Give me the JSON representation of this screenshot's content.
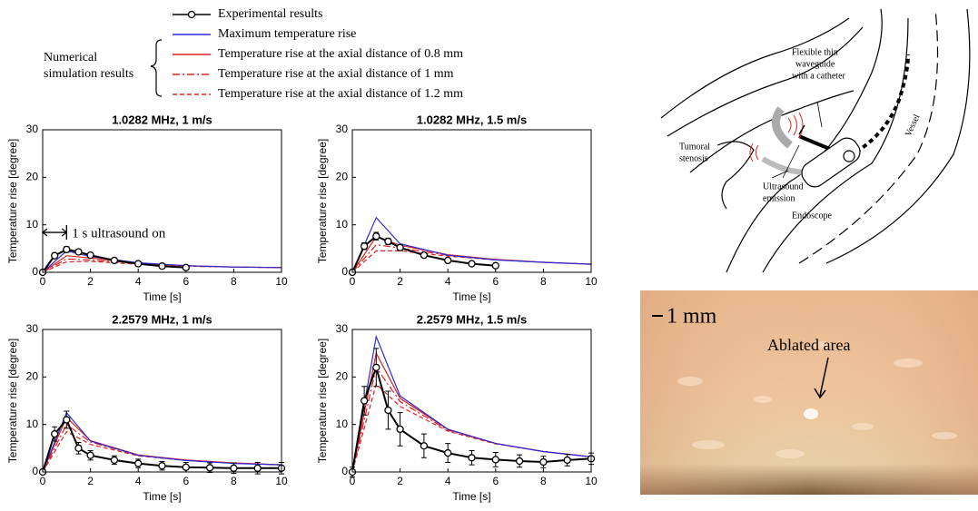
{
  "chart_data": [
    {
      "type": "line",
      "title": "1.0282 MHz, 1 m/s",
      "x_label": "Time [s]",
      "y_label": "Temperature rise [degree]",
      "annotation": "1 s ultrasound on",
      "xlim": [
        0,
        10
      ],
      "ylim": [
        0,
        30
      ],
      "xticks": [
        0,
        2,
        4,
        6,
        8,
        10
      ],
      "yticks": [
        0,
        10,
        20,
        30
      ],
      "series": [
        {
          "name": "Experimental results",
          "color": "#000000",
          "dash": "solid",
          "marker": "circle",
          "x": [
            0,
            0.5,
            1,
            1.5,
            2,
            3,
            4,
            5,
            6
          ],
          "values": [
            0,
            3.5,
            4.8,
            4.3,
            3.6,
            2.5,
            1.8,
            1.3,
            1.0
          ],
          "errors": [
            0.3,
            0.5,
            0.6,
            0.5,
            0.4,
            0.4,
            0.3,
            0.3,
            0.3
          ]
        },
        {
          "name": "Maximum temperature rise",
          "color": "#2b2bd9",
          "dash": "solid",
          "x": [
            0,
            1,
            2,
            4,
            6,
            8,
            10
          ],
          "values": [
            0,
            4.5,
            3.3,
            2.0,
            1.4,
            1.1,
            1.0
          ]
        },
        {
          "name": "Temperature rise at the axial distance of 0.8 mm",
          "color": "#e02020",
          "dash": "solid",
          "x": [
            0,
            1,
            2,
            4,
            6,
            8,
            10
          ],
          "values": [
            0,
            3.5,
            3.0,
            1.9,
            1.4,
            1.1,
            1.0
          ]
        },
        {
          "name": "Temperature rise at the axial distance of 1 mm",
          "color": "#e02020",
          "dash": "dashdot",
          "x": [
            0,
            1,
            2,
            4,
            6,
            8,
            10
          ],
          "values": [
            0,
            2.8,
            2.6,
            1.8,
            1.3,
            1.1,
            1.0
          ]
        },
        {
          "name": "Temperature rise at the axial distance of 1.2 mm",
          "color": "#e02020",
          "dash": "dashed",
          "x": [
            0,
            1,
            2,
            4,
            6,
            8,
            10
          ],
          "values": [
            0,
            2.2,
            2.3,
            1.7,
            1.3,
            1.1,
            1.0
          ]
        }
      ]
    },
    {
      "type": "line",
      "title": "1.0282 MHz, 1.5 m/s",
      "x_label": "Time [s]",
      "y_label": "Temperature rise [degree]",
      "xlim": [
        0,
        10
      ],
      "ylim": [
        0,
        30
      ],
      "xticks": [
        0,
        2,
        4,
        6,
        8,
        10
      ],
      "yticks": [
        0,
        10,
        20,
        30
      ],
      "series": [
        {
          "name": "Experimental results",
          "color": "#000000",
          "dash": "solid",
          "marker": "circle",
          "x": [
            0,
            0.5,
            1,
            1.5,
            2,
            3,
            4,
            5,
            6
          ],
          "values": [
            0,
            5.5,
            7.6,
            6.5,
            5.2,
            3.6,
            2.5,
            1.8,
            1.4
          ],
          "errors": [
            0.5,
            0.7,
            0.8,
            0.7,
            0.6,
            0.5,
            0.4,
            0.4,
            0.3
          ]
        },
        {
          "name": "Maximum temperature rise",
          "color": "#2b2bd9",
          "dash": "solid",
          "x": [
            0,
            1,
            2,
            4,
            6,
            8,
            10
          ],
          "values": [
            0,
            11.5,
            6.0,
            3.6,
            2.6,
            2.1,
            1.7
          ]
        },
        {
          "name": "Temperature rise at the axial distance of 0.8 mm",
          "color": "#e02020",
          "dash": "solid",
          "x": [
            0,
            1,
            2,
            4,
            6,
            8,
            10
          ],
          "values": [
            0,
            7.5,
            5.7,
            3.7,
            2.7,
            2.1,
            1.7
          ]
        },
        {
          "name": "Temperature rise at the axial distance of 1 mm",
          "color": "#e02020",
          "dash": "dashdot",
          "x": [
            0,
            1,
            2,
            4,
            6,
            8,
            10
          ],
          "values": [
            0,
            5.8,
            5.1,
            3.6,
            2.7,
            2.1,
            1.7
          ]
        },
        {
          "name": "Temperature rise at the axial distance of 1.2 mm",
          "color": "#e02020",
          "dash": "dashed",
          "x": [
            0,
            1,
            2,
            4,
            6,
            8,
            10
          ],
          "values": [
            0,
            4.5,
            4.5,
            3.4,
            2.6,
            2.1,
            1.7
          ]
        }
      ]
    },
    {
      "type": "line",
      "title": "2.2579 MHz, 1 m/s",
      "x_label": "Time [s]",
      "y_label": "Temperature rise [degree]",
      "xlim": [
        0,
        10
      ],
      "ylim": [
        0,
        30
      ],
      "xticks": [
        0,
        2,
        4,
        6,
        8,
        10
      ],
      "yticks": [
        0,
        10,
        20,
        30
      ],
      "series": [
        {
          "name": "Experimental results",
          "color": "#000000",
          "dash": "solid",
          "marker": "circle",
          "x": [
            0,
            0.5,
            1,
            1.5,
            2,
            3,
            4,
            5,
            6,
            7,
            8,
            9,
            10
          ],
          "values": [
            0,
            8,
            11,
            5,
            3.5,
            2.5,
            1.8,
            1.3,
            1.0,
            0.9,
            0.8,
            0.8,
            0.8
          ],
          "errors": [
            0.5,
            1.5,
            1.8,
            1.2,
            1,
            0.9,
            0.9,
            0.9,
            1,
            1,
            1.1,
            1.2,
            1.2
          ]
        },
        {
          "name": "Maximum temperature rise",
          "color": "#2b2bd9",
          "dash": "solid",
          "x": [
            0,
            1,
            2,
            4,
            6,
            8,
            10
          ],
          "values": [
            0,
            12.5,
            6.5,
            3.5,
            2.4,
            1.8,
            1.5
          ]
        },
        {
          "name": "Temperature rise at the axial distance of 0.8 mm",
          "color": "#e02020",
          "dash": "solid",
          "x": [
            0,
            1,
            2,
            4,
            6,
            8,
            10
          ],
          "values": [
            0,
            11.5,
            6.6,
            3.6,
            2.5,
            1.9,
            1.5
          ]
        },
        {
          "name": "Temperature rise at the axial distance of 1 mm",
          "color": "#e02020",
          "dash": "dashdot",
          "x": [
            0,
            1,
            2,
            4,
            6,
            8,
            10
          ],
          "values": [
            0,
            10,
            6.3,
            3.5,
            2.5,
            1.9,
            1.5
          ]
        },
        {
          "name": "Temperature rise at the axial distance of 1.2 mm",
          "color": "#e02020",
          "dash": "dashed",
          "x": [
            0,
            1,
            2,
            4,
            6,
            8,
            10
          ],
          "values": [
            0,
            8.5,
            5.8,
            3.4,
            2.4,
            1.9,
            1.5
          ]
        }
      ]
    },
    {
      "type": "line",
      "title": "2.2579 MHz, 1.5 m/s",
      "x_label": "Time [s]",
      "y_label": "Temperature rise [degree]",
      "xlim": [
        0,
        10
      ],
      "ylim": [
        0,
        30
      ],
      "xticks": [
        0,
        2,
        4,
        6,
        8,
        10
      ],
      "yticks": [
        0,
        10,
        20,
        30
      ],
      "series": [
        {
          "name": "Experimental results",
          "color": "#000000",
          "dash": "solid",
          "marker": "circle",
          "x": [
            0,
            0.5,
            1,
            1.5,
            2,
            3,
            4,
            5,
            6,
            7,
            8,
            9,
            10
          ],
          "values": [
            0,
            15,
            22,
            13,
            9,
            5.5,
            4,
            3,
            2.6,
            2.3,
            2.1,
            2.5,
            2.8
          ],
          "errors": [
            1,
            3,
            4,
            4,
            3.5,
            2.5,
            2,
            1.5,
            1.5,
            1.3,
            1.2,
            1.2,
            1.2
          ]
        },
        {
          "name": "Maximum temperature rise",
          "color": "#2b2bd9",
          "dash": "solid",
          "x": [
            0,
            1,
            2,
            4,
            6,
            8,
            10
          ],
          "values": [
            0,
            28.5,
            16,
            9,
            6,
            4.3,
            3.2
          ]
        },
        {
          "name": "Temperature rise at the axial distance of 0.8 mm",
          "color": "#e02020",
          "dash": "solid",
          "x": [
            0,
            1,
            2,
            4,
            6,
            8,
            10
          ],
          "values": [
            0,
            25,
            15.5,
            9,
            6,
            4.3,
            3.2
          ]
        },
        {
          "name": "Temperature rise at the axial distance of 1 mm",
          "color": "#e02020",
          "dash": "dashdot",
          "x": [
            0,
            1,
            2,
            4,
            6,
            8,
            10
          ],
          "values": [
            0,
            22,
            14.8,
            8.8,
            6,
            4.3,
            3.2
          ]
        },
        {
          "name": "Temperature rise at the axial distance of 1.2 mm",
          "color": "#e02020",
          "dash": "dashed",
          "x": [
            0,
            1,
            2,
            4,
            6,
            8,
            10
          ],
          "values": [
            0,
            18.5,
            13.8,
            8.6,
            5.9,
            4.3,
            3.2
          ]
        }
      ]
    }
  ],
  "legend_group_label": [
    "Numerical",
    "simulation results"
  ],
  "diagram": {
    "waveguide_label": [
      "Flexible thin",
      "waveguide",
      "with a catheter"
    ],
    "stenosis_label": [
      "Tumoral",
      "stenosis"
    ],
    "emission_label": [
      "Ultrasound",
      "emission"
    ],
    "endoscope_label": "Endoscope",
    "vessel_label": "Vessel"
  },
  "photo": {
    "scale_label": "1 mm",
    "annotation": "Ablated area"
  }
}
